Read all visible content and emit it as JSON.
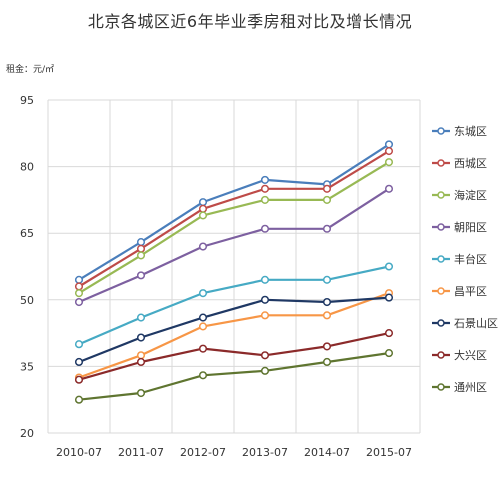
{
  "chart_data": {
    "type": "line",
    "title": "北京各城区近6年毕业季房租对比及增长情况",
    "ylabel": "租金：元/㎡",
    "xlabel": "",
    "categories": [
      "2010-07",
      "2011-07",
      "2012-07",
      "2013-07",
      "2014-07",
      "2015-07"
    ],
    "ylim": [
      20,
      95
    ],
    "yticks": [
      20,
      35,
      50,
      65,
      80,
      95
    ],
    "grid": true,
    "legend_position": "right",
    "series": [
      {
        "name": "东城区",
        "color": "#4a7ebb",
        "values": [
          54.5,
          63,
          72,
          77,
          76,
          85
        ]
      },
      {
        "name": "西城区",
        "color": "#be4b48",
        "values": [
          53,
          61.5,
          70.5,
          75,
          75,
          83.5
        ]
      },
      {
        "name": "海淀区",
        "color": "#98b954",
        "values": [
          51.5,
          60,
          69,
          72.5,
          72.5,
          81
        ]
      },
      {
        "name": "朝阳区",
        "color": "#7d60a0",
        "values": [
          49.5,
          55.5,
          62,
          66,
          66,
          75
        ]
      },
      {
        "name": "丰台区",
        "color": "#46aac4",
        "values": [
          40,
          46,
          51.5,
          54.5,
          54.5,
          57.5
        ]
      },
      {
        "name": "昌平区",
        "color": "#f79646",
        "values": [
          32.5,
          37.5,
          44,
          46.5,
          46.5,
          51.5
        ]
      },
      {
        "name": "石景山区",
        "color": "#1f3864",
        "values": [
          36,
          41.5,
          46,
          50,
          49.5,
          50.5
        ]
      },
      {
        "name": "大兴区",
        "color": "#8b2a2a",
        "values": [
          32,
          36,
          39,
          37.5,
          39.5,
          42.5
        ]
      },
      {
        "name": "通州区",
        "color": "#5f7530",
        "values": [
          27.5,
          29,
          33,
          34,
          36,
          38
        ]
      }
    ]
  }
}
